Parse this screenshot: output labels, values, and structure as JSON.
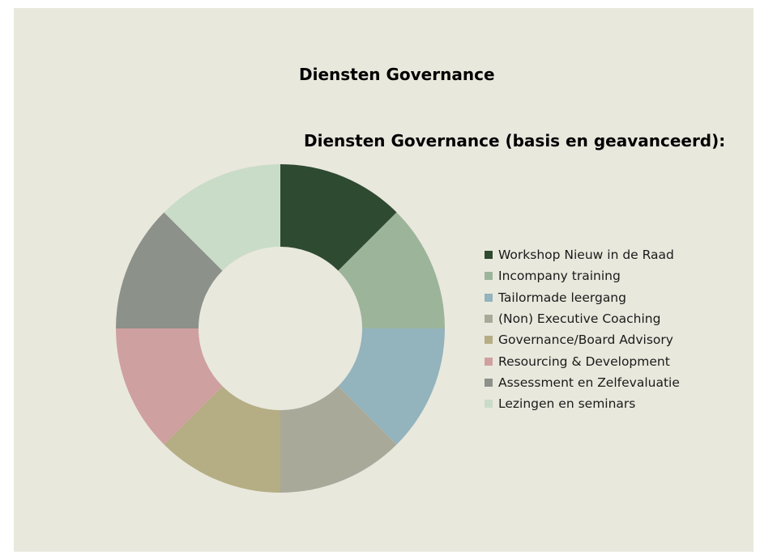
{
  "title": "Diensten Governance",
  "subtitle": "Diensten Governance (basis en geavanceerd):",
  "colors": {
    "background": "#e9e8dd"
  },
  "chart_data": {
    "type": "pie",
    "style": "donut",
    "title": "Diensten Governance (basis en geavanceerd):",
    "legend_position": "right",
    "categories": [
      "Workshop Nieuw in de Raad",
      "Incompany training",
      "Tailormade leergang",
      "(Non) Executive Coaching",
      "Governance/Board Advisory",
      "Resourcing & Development",
      "Assessment en Zelfevaluatie",
      "Lezingen en seminars"
    ],
    "values": [
      1,
      1,
      1,
      1,
      1,
      1,
      1,
      1
    ],
    "colors": [
      "#2e4a30",
      "#9cb59a",
      "#93b3bd",
      "#a9a99a",
      "#b5ad84",
      "#cfa0a0",
      "#8c918a",
      "#c9dcc8"
    ]
  }
}
